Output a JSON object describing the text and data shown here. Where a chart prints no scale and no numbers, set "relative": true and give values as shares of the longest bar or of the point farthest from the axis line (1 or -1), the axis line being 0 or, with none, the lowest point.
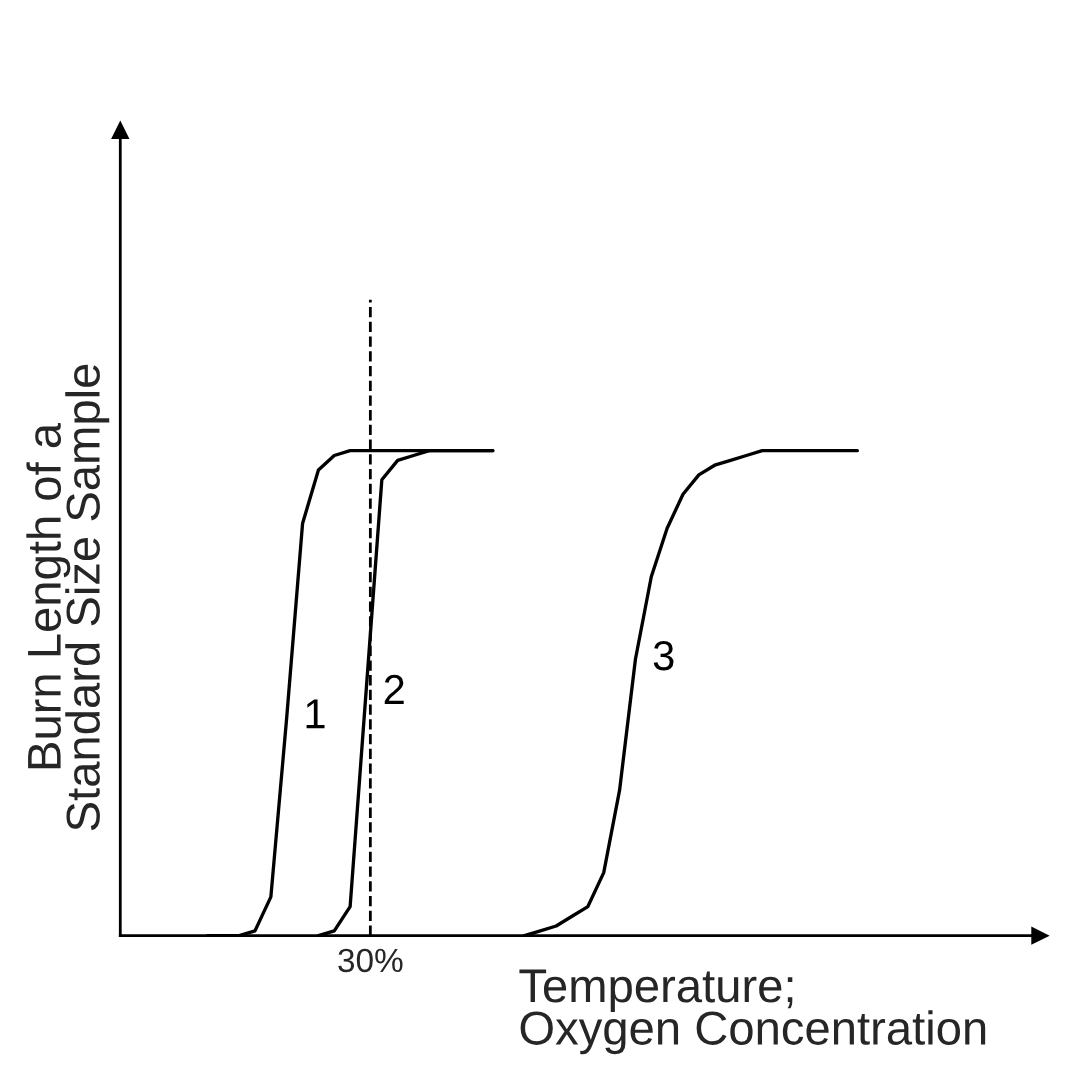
{
  "chart_data": {
    "type": "line",
    "relative": true,
    "xlabel": "Temperature;\nOxygen Concentration",
    "ylabel": "Burn Length of a\nStandard Size Sample",
    "categories": [
      null,
      null,
      null,
      null,
      null,
      null,
      null,
      null,
      null,
      null,
      null,
      null,
      null,
      null,
      null,
      null,
      null,
      null,
      null,
      null,
      null,
      null,
      null,
      null,
      null,
      null,
      null,
      null,
      null,
      null,
      null,
      null,
      null,
      null,
      null,
      null,
      null,
      null,
      null,
      null,
      null,
      null,
      null,
      null,
      null,
      null,
      null,
      null,
      null,
      null,
      null,
      null,
      null,
      null,
      null,
      null,
      null,
      null
    ],
    "series": [
      {
        "name": "1",
        "color": "#000000",
        "values": [
          null,
          null,
          null,
          null,
          null,
          0,
          0,
          0,
          0.01,
          0.08,
          0.45,
          0.85,
          0.96,
          0.99,
          1,
          1,
          1,
          1,
          1,
          1,
          1,
          1,
          1,
          1,
          null,
          null,
          null,
          null,
          null,
          null,
          null,
          null,
          null,
          null,
          null,
          null,
          null,
          null,
          null,
          null,
          null,
          null,
          null,
          null,
          null,
          null,
          null,
          null,
          null,
          null,
          null,
          null,
          null,
          null,
          null,
          null,
          null,
          null
        ]
      },
      {
        "name": "2",
        "color": "#000000",
        "values": [
          null,
          null,
          null,
          null,
          null,
          null,
          null,
          null,
          null,
          null,
          null,
          null,
          0,
          0.01,
          0.06,
          0.5,
          0.94,
          0.98,
          0.99,
          1,
          1,
          1,
          1,
          1,
          null,
          null,
          null,
          null,
          null,
          null,
          null,
          null,
          null,
          null,
          null,
          null,
          null,
          null,
          null,
          null,
          null,
          null,
          null,
          null,
          null,
          null,
          null,
          null,
          null,
          null,
          null,
          null,
          null,
          null,
          null,
          null,
          null,
          null
        ]
      },
      {
        "name": "3",
        "color": "#000000",
        "values": [
          null,
          null,
          null,
          null,
          null,
          null,
          null,
          null,
          null,
          null,
          null,
          null,
          null,
          null,
          null,
          null,
          null,
          null,
          null,
          null,
          null,
          null,
          null,
          null,
          null,
          0,
          0.01,
          0.02,
          0.04,
          0.06,
          0.13,
          0.3,
          0.57,
          0.74,
          0.84,
          0.91,
          0.95,
          0.97,
          0.98,
          0.99,
          1,
          1,
          1,
          1,
          1,
          1,
          1,
          null,
          null,
          null,
          null,
          null,
          null,
          null,
          null,
          null,
          null,
          null
        ]
      }
    ],
    "annotations": [
      "30%"
    ],
    "legend": false,
    "marker": "none",
    "line_style": "solid"
  }
}
